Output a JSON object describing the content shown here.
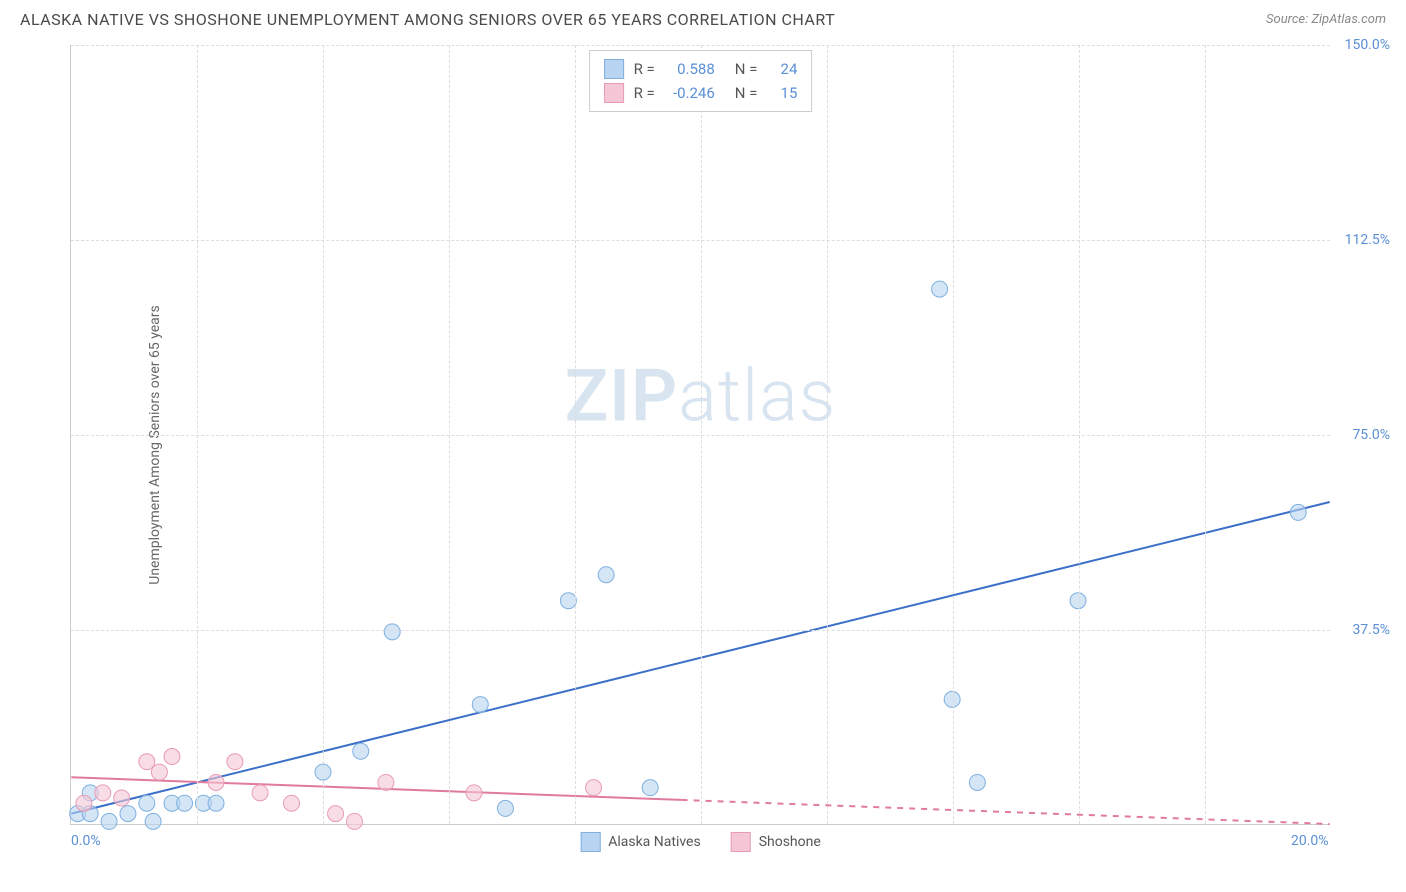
{
  "header": {
    "title": "ALASKA NATIVE VS SHOSHONE UNEMPLOYMENT AMONG SENIORS OVER 65 YEARS CORRELATION CHART",
    "source_label": "Source:",
    "source_name": "ZipAtlas.com"
  },
  "watermark": {
    "zip": "ZIP",
    "atlas": "atlas"
  },
  "ylabel": "Unemployment Among Seniors over 65 years",
  "legend_top": {
    "rows": [
      {
        "swatch_fill": "#b8d4f0",
        "swatch_border": "#7fb0e0",
        "r_label": "R =",
        "r_val": "0.588",
        "n_label": "N =",
        "n_val": "24"
      },
      {
        "swatch_fill": "#f5c6d6",
        "swatch_border": "#e89bb5",
        "r_label": "R =",
        "r_val": "-0.246",
        "n_label": "N =",
        "n_val": "15"
      }
    ]
  },
  "legend_bottom": {
    "items": [
      {
        "swatch_fill": "#b8d4f0",
        "swatch_border": "#7fb0e0",
        "label": "Alaska Natives"
      },
      {
        "swatch_fill": "#f5c6d6",
        "swatch_border": "#e89bb5",
        "label": "Shoshone"
      }
    ]
  },
  "chart": {
    "type": "scatter",
    "xlim": [
      0,
      20
    ],
    "ylim": [
      0,
      150
    ],
    "x_ticks": [
      {
        "val": 0,
        "label": "0.0%"
      },
      {
        "val": 20,
        "label": "20.0%"
      }
    ],
    "y_ticks": [
      {
        "val": 37.5,
        "label": "37.5%"
      },
      {
        "val": 75.0,
        "label": "75.0%"
      },
      {
        "val": 112.5,
        "label": "112.5%"
      },
      {
        "val": 150.0,
        "label": "150.0%"
      }
    ],
    "x_minor_step": 2,
    "y_grid_vals": [
      37.5,
      75,
      112.5,
      150
    ],
    "background_color": "#ffffff",
    "grid_color": "#dddddd",
    "marker_radius": 8,
    "marker_stroke_width": 1,
    "series": [
      {
        "name": "Alaska Natives",
        "fill": "#b8d4f0",
        "stroke": "#7fb0e0",
        "fill_opacity": 0.6,
        "points": [
          [
            0.1,
            2
          ],
          [
            0.3,
            6
          ],
          [
            0.3,
            2
          ],
          [
            0.6,
            0.5
          ],
          [
            0.9,
            2
          ],
          [
            1.2,
            4
          ],
          [
            1.3,
            0.5
          ],
          [
            1.6,
            4
          ],
          [
            1.8,
            4
          ],
          [
            2.1,
            4
          ],
          [
            2.3,
            4
          ],
          [
            4.0,
            10
          ],
          [
            4.6,
            14
          ],
          [
            5.1,
            37
          ],
          [
            6.5,
            23
          ],
          [
            6.9,
            3
          ],
          [
            7.9,
            43
          ],
          [
            8.5,
            48
          ],
          [
            9.2,
            7
          ],
          [
            13.8,
            103
          ],
          [
            14.0,
            24
          ],
          [
            14.4,
            8
          ],
          [
            16.0,
            43
          ],
          [
            19.5,
            60
          ]
        ],
        "trend": {
          "color": "#3b6fc9",
          "width": 2,
          "x1": 0,
          "y1": 2,
          "x2": 20,
          "y2": 62,
          "solid_until_x": 20
        }
      },
      {
        "name": "Shoshone",
        "fill": "#f5c6d6",
        "stroke": "#e89bb5",
        "fill_opacity": 0.6,
        "points": [
          [
            0.2,
            4
          ],
          [
            0.5,
            6
          ],
          [
            0.8,
            5
          ],
          [
            1.2,
            12
          ],
          [
            1.4,
            10
          ],
          [
            1.6,
            13
          ],
          [
            2.3,
            8
          ],
          [
            2.6,
            12
          ],
          [
            3.0,
            6
          ],
          [
            3.5,
            4
          ],
          [
            4.2,
            2
          ],
          [
            4.5,
            0.5
          ],
          [
            5.0,
            8
          ],
          [
            6.4,
            6
          ],
          [
            8.3,
            7
          ]
        ],
        "trend": {
          "color": "#e07a9e",
          "width": 2,
          "x1": 0,
          "y1": 9,
          "x2": 20,
          "y2": 0,
          "solid_until_x": 9.7
        }
      }
    ]
  }
}
